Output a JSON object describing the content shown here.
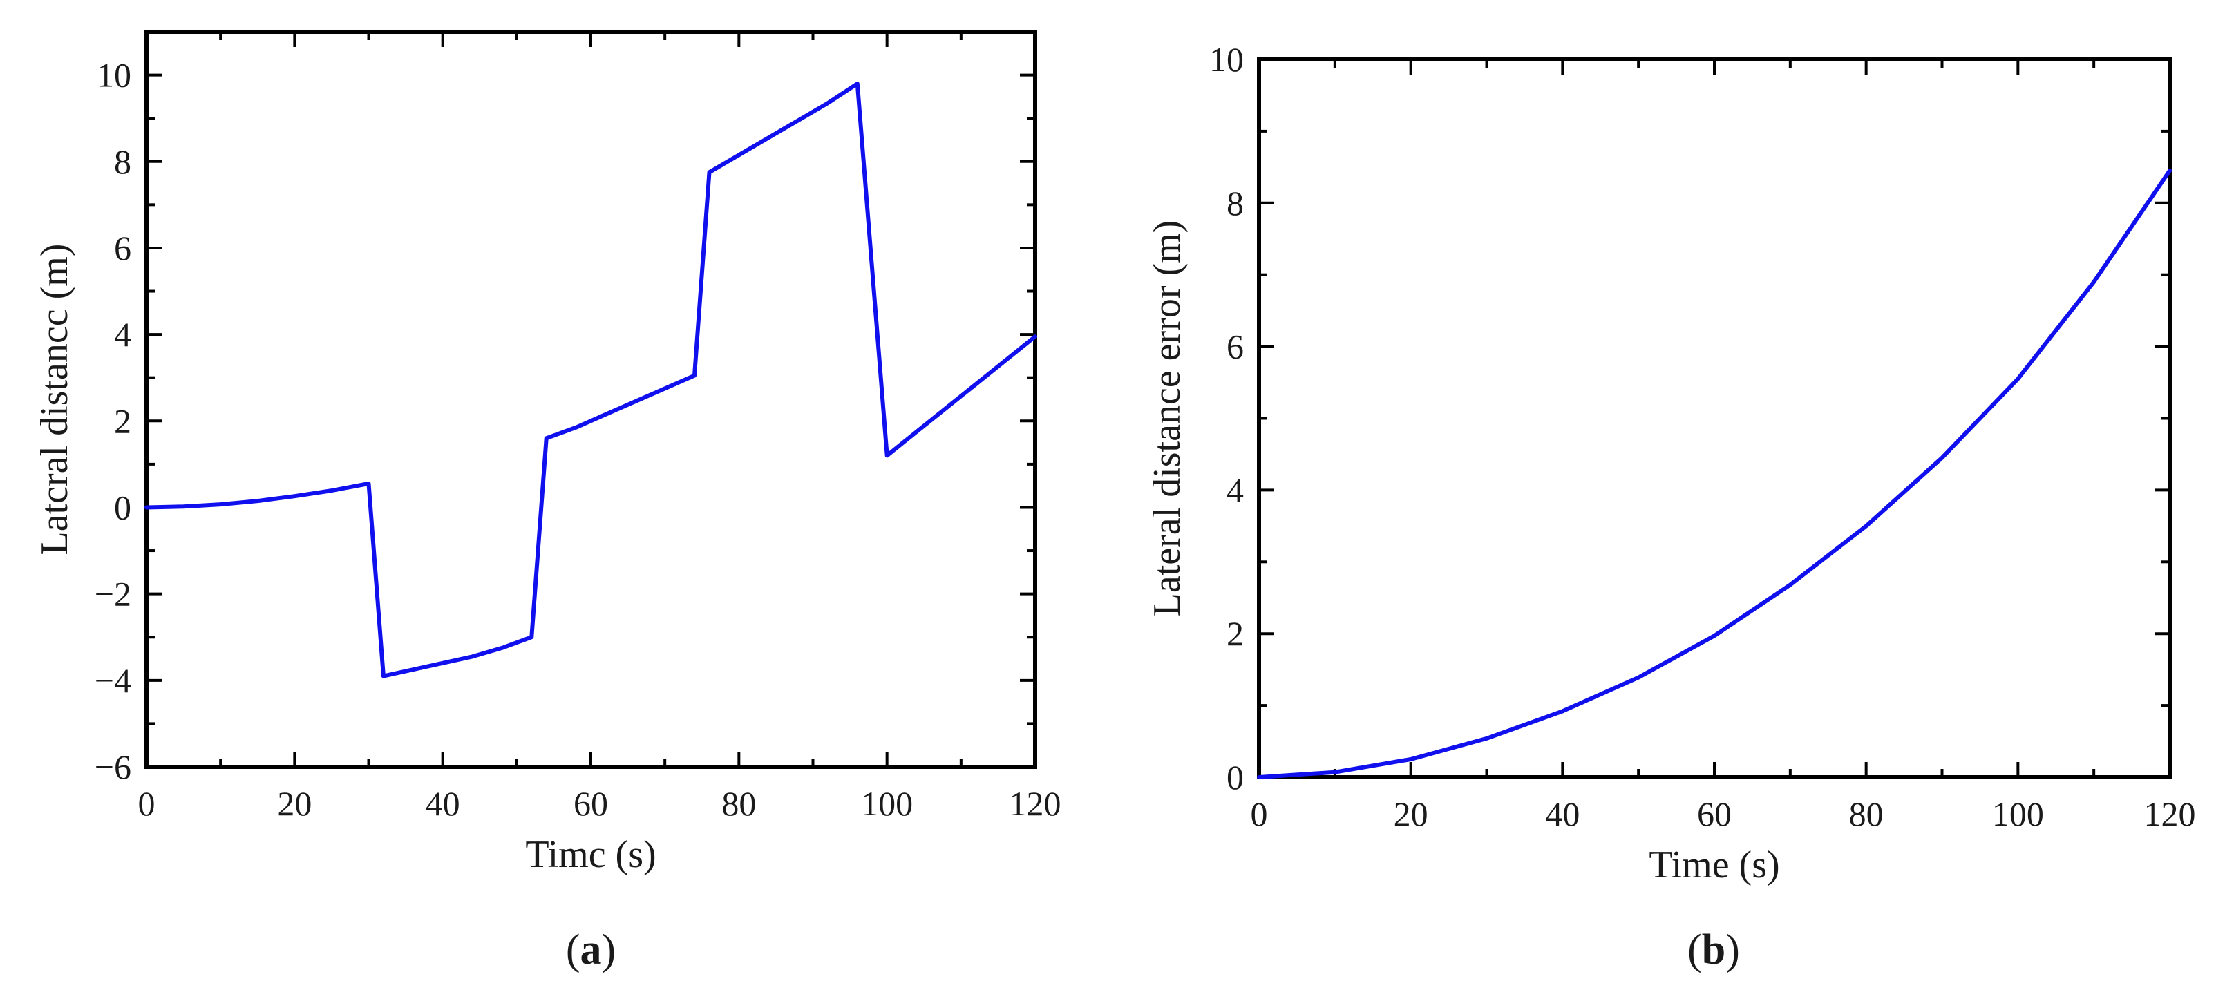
{
  "chart_data": [
    {
      "type": "line",
      "panel_label": "(a)",
      "xlabel": "Timc (s)",
      "ylabel": "Latcral distancc (m)",
      "xlim": [
        0,
        120
      ],
      "ylim": [
        -6,
        11
      ],
      "xticks": [
        0,
        20,
        40,
        60,
        80,
        100,
        120
      ],
      "yticks": [
        -6,
        -4,
        -2,
        0,
        2,
        4,
        6,
        8,
        10
      ],
      "grid": false,
      "series_color": "#1010ee",
      "series": [
        {
          "x": [
            0,
            5,
            10,
            15,
            20,
            25,
            30,
            32,
            36,
            40,
            44,
            48,
            52,
            54,
            58,
            62,
            66,
            70,
            74,
            76,
            80,
            84,
            88,
            92,
            96,
            100,
            104,
            108,
            112,
            116,
            120
          ],
          "y": [
            0,
            0.02,
            0.07,
            0.15,
            0.26,
            0.39,
            0.55,
            -3.9,
            -3.75,
            -3.6,
            -3.45,
            -3.25,
            -3.0,
            1.6,
            1.85,
            2.15,
            2.45,
            2.75,
            3.05,
            7.75,
            8.15,
            8.55,
            8.95,
            9.35,
            9.8,
            1.2,
            1.75,
            2.3,
            2.85,
            3.4,
            3.95
          ]
        }
      ]
    },
    {
      "type": "line",
      "panel_label": "(b)",
      "xlabel": "Time (s)",
      "ylabel": "Lateral distance error (m)",
      "xlim": [
        0,
        120
      ],
      "ylim": [
        0,
        10
      ],
      "xticks": [
        0,
        20,
        40,
        60,
        80,
        100,
        120
      ],
      "yticks": [
        0,
        2,
        4,
        6,
        8,
        10
      ],
      "grid": false,
      "series_color": "#1010ee",
      "series": [
        {
          "x": [
            0,
            10,
            20,
            30,
            40,
            50,
            60,
            70,
            80,
            90,
            100,
            110,
            120
          ],
          "y": [
            0,
            0.07,
            0.25,
            0.54,
            0.92,
            1.39,
            1.97,
            2.68,
            3.5,
            4.45,
            5.55,
            6.9,
            8.45
          ]
        }
      ]
    }
  ]
}
